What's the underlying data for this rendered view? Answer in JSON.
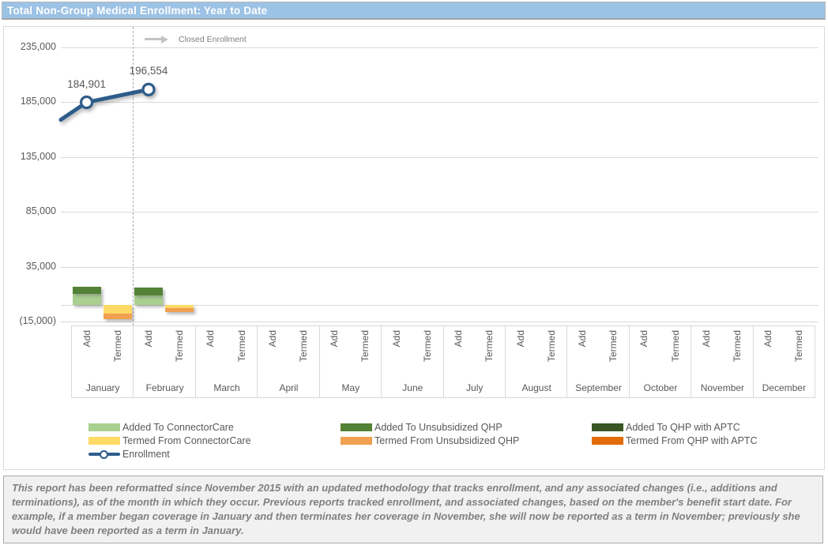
{
  "header": {
    "title": "Total Non-Group Medical Enrollment: Year to Date"
  },
  "chart_data": {
    "type": "combo (stacked column + line)",
    "months": [
      "January",
      "February",
      "March",
      "April",
      "May",
      "June",
      "July",
      "August",
      "September",
      "October",
      "November",
      "December"
    ],
    "month_sub_columns": [
      "Add",
      "Termed"
    ],
    "y_axis": {
      "tick_labels": [
        "235,000",
        "185,000",
        "135,000",
        "85,000",
        "35,000",
        "(15,000)"
      ],
      "tick_values": [
        235000,
        185000,
        135000,
        85000,
        35000,
        -15000
      ],
      "min": -15000,
      "max": 235000,
      "grid": true
    },
    "bar_series": [
      {
        "name": "Added To ConnectorCare",
        "color": "#A9D08E",
        "values": [
          10100,
          8600,
          0,
          0,
          0,
          0,
          0,
          0,
          0,
          0,
          0,
          0
        ]
      },
      {
        "name": "Added To Unsubsidized QHP",
        "color": "#538135",
        "values": [
          6500,
          7200,
          0,
          0,
          0,
          0,
          0,
          0,
          0,
          0,
          0,
          0
        ]
      },
      {
        "name": "Added To QHP with APTC",
        "color": "#375623",
        "values": [
          0,
          0,
          0,
          0,
          0,
          0,
          0,
          0,
          0,
          0,
          0,
          0
        ]
      },
      {
        "name": "Termed From ConnectorCare",
        "color": "#FFD966",
        "values": [
          -7900,
          -2900,
          0,
          0,
          0,
          0,
          0,
          0,
          0,
          0,
          0,
          0
        ]
      },
      {
        "name": "Termed From Unsubsidized QHP",
        "color": "#F0A04F",
        "values": [
          -5000,
          -3600,
          0,
          0,
          0,
          0,
          0,
          0,
          0,
          0,
          0,
          0
        ]
      },
      {
        "name": "Termed From QHP with APTC",
        "color": "#E36C0A",
        "values": [
          0,
          0,
          0,
          0,
          0,
          0,
          0,
          0,
          0,
          0,
          0,
          0
        ]
      }
    ],
    "line_series": {
      "name": "Enrollment",
      "color": "#2E5C8A",
      "points": [
        {
          "month": "January",
          "value": 184901,
          "label": "184,901"
        },
        {
          "month": "February",
          "value": 196554,
          "label": "196,554"
        }
      ],
      "left_edge_start_value": 169000
    },
    "closed_enrollment_label": "Closed Enrollment",
    "closed_line_after_month": "January",
    "legend": {
      "position": "bottom",
      "columns": [
        [
          {
            "name": "Added To ConnectorCare",
            "swatch": "#A9D08E",
            "kind": "bar"
          },
          {
            "name": "Termed From ConnectorCare",
            "swatch": "#FFD966",
            "kind": "bar"
          },
          {
            "name": "Enrollment",
            "swatch": "#2E5C8A",
            "kind": "line"
          }
        ],
        [
          {
            "name": "Added To Unsubsidized QHP",
            "swatch": "#538135",
            "kind": "bar"
          },
          {
            "name": "Termed From Unsubsidized QHP",
            "swatch": "#F0A04F",
            "kind": "bar"
          }
        ],
        [
          {
            "name": "Added To QHP with APTC",
            "swatch": "#375623",
            "kind": "bar"
          },
          {
            "name": "Termed From QHP with APTC",
            "swatch": "#E36C0A",
            "kind": "bar"
          }
        ]
      ]
    }
  },
  "footnote": {
    "text": "This report has been reformatted since November 2015 with an updated methodology that tracks enrollment, and any associated changes (i.e., additions and terminations), as of the month in which they occur.  Previous reports tracked enrollment, and associated changes, based on the member's benefit start date.  For example, if a member began coverage in January and then terminates her coverage in November, she will now be reported as a term in November; previously she would have been reported as a term in January."
  }
}
